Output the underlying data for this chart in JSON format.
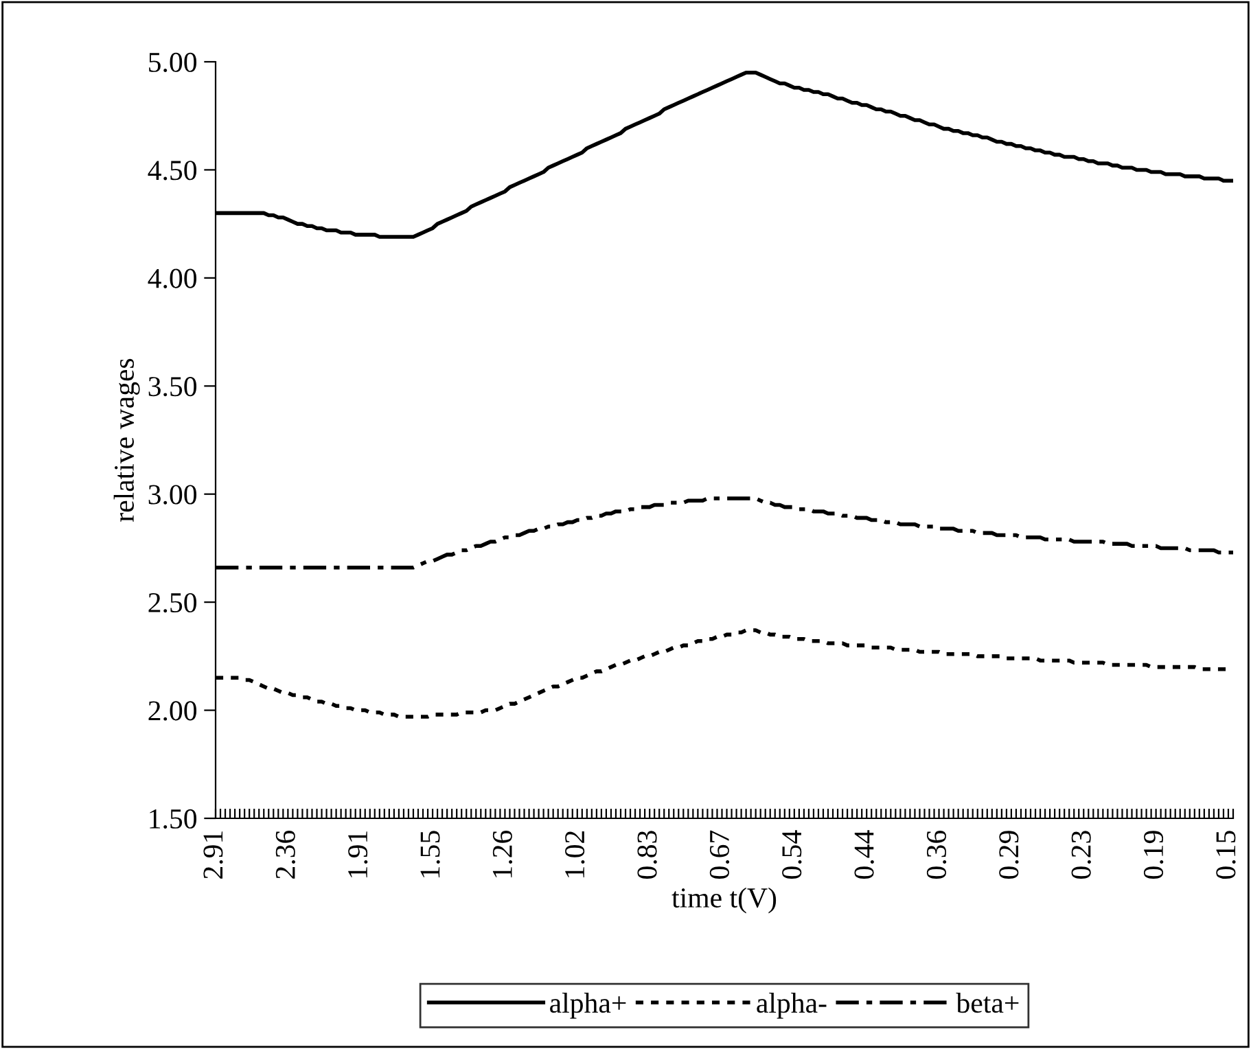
{
  "chart_data": {
    "type": "line",
    "xlabel": "time t(V)",
    "ylabel": "relative wages",
    "categories": [
      "2.91",
      null,
      null,
      null,
      null,
      null,
      null,
      null,
      null,
      null,
      null,
      null,
      null,
      null,
      null,
      "2.36",
      null,
      null,
      null,
      null,
      null,
      null,
      null,
      null,
      null,
      null,
      null,
      null,
      null,
      null,
      "1.91",
      null,
      null,
      null,
      null,
      null,
      null,
      null,
      null,
      null,
      null,
      null,
      null,
      null,
      null,
      "1.55",
      null,
      null,
      null,
      null,
      null,
      null,
      null,
      null,
      null,
      null,
      null,
      null,
      null,
      null,
      "1.26",
      null,
      null,
      null,
      null,
      null,
      null,
      null,
      null,
      null,
      null,
      null,
      null,
      null,
      null,
      "1.02",
      null,
      null,
      null,
      null,
      null,
      null,
      null,
      null,
      null,
      null,
      null,
      null,
      null,
      null,
      "0.83",
      null,
      null,
      null,
      null,
      null,
      null,
      null,
      null,
      null,
      null,
      null,
      null,
      null,
      null,
      "0.67",
      null,
      null,
      null,
      null,
      null,
      null,
      null,
      null,
      null,
      null,
      null,
      null,
      null,
      null,
      "0.54",
      null,
      null,
      null,
      null,
      null,
      null,
      null,
      null,
      null,
      null,
      null,
      null,
      null,
      null,
      "0.44",
      null,
      null,
      null,
      null,
      null,
      null,
      null,
      null,
      null,
      null,
      null,
      null,
      null,
      null,
      "0.36",
      null,
      null,
      null,
      null,
      null,
      null,
      null,
      null,
      null,
      null,
      null,
      null,
      null,
      null,
      "0.29",
      null,
      null,
      null,
      null,
      null,
      null,
      null,
      null,
      null,
      null,
      null,
      null,
      null,
      null,
      "0.23",
      null,
      null,
      null,
      null,
      null,
      null,
      null,
      null,
      null,
      null,
      null,
      null,
      null,
      null,
      "0.19",
      null,
      null,
      null,
      null,
      null,
      null,
      null,
      null,
      null,
      null,
      null,
      null,
      null,
      null,
      "0.15",
      null
    ],
    "series": [
      {
        "name": "alpha+",
        "color": "#000000",
        "line_style": "solid",
        "values": [
          4.3,
          4.3,
          4.3,
          4.3,
          4.3,
          4.3,
          4.3,
          4.3,
          4.3,
          4.3,
          4.3,
          4.29,
          4.29,
          4.28,
          4.28,
          4.27,
          4.26,
          4.25,
          4.25,
          4.24,
          4.24,
          4.23,
          4.23,
          4.22,
          4.22,
          4.22,
          4.21,
          4.21,
          4.21,
          4.2,
          4.2,
          4.2,
          4.2,
          4.2,
          4.19,
          4.19,
          4.19,
          4.19,
          4.19,
          4.19,
          4.19,
          4.19,
          4.2,
          4.21,
          4.22,
          4.23,
          4.25,
          4.26,
          4.27,
          4.28,
          4.29,
          4.3,
          4.31,
          4.33,
          4.34,
          4.35,
          4.36,
          4.37,
          4.38,
          4.39,
          4.4,
          4.42,
          4.43,
          4.44,
          4.45,
          4.46,
          4.47,
          4.48,
          4.49,
          4.51,
          4.52,
          4.53,
          4.54,
          4.55,
          4.56,
          4.57,
          4.58,
          4.6,
          4.61,
          4.62,
          4.63,
          4.64,
          4.65,
          4.66,
          4.67,
          4.69,
          4.7,
          4.71,
          4.72,
          4.73,
          4.74,
          4.75,
          4.76,
          4.78,
          4.79,
          4.8,
          4.81,
          4.82,
          4.83,
          4.84,
          4.85,
          4.86,
          4.87,
          4.88,
          4.89,
          4.9,
          4.91,
          4.92,
          4.93,
          4.94,
          4.95,
          4.95,
          4.95,
          4.94,
          4.93,
          4.92,
          4.91,
          4.9,
          4.9,
          4.89,
          4.88,
          4.88,
          4.87,
          4.87,
          4.86,
          4.86,
          4.85,
          4.85,
          4.84,
          4.83,
          4.83,
          4.82,
          4.81,
          4.81,
          4.8,
          4.8,
          4.79,
          4.78,
          4.78,
          4.77,
          4.77,
          4.76,
          4.75,
          4.75,
          4.74,
          4.73,
          4.73,
          4.72,
          4.71,
          4.71,
          4.7,
          4.69,
          4.69,
          4.68,
          4.68,
          4.67,
          4.67,
          4.66,
          4.66,
          4.65,
          4.65,
          4.64,
          4.63,
          4.63,
          4.62,
          4.62,
          4.61,
          4.61,
          4.6,
          4.6,
          4.59,
          4.59,
          4.58,
          4.58,
          4.57,
          4.57,
          4.56,
          4.56,
          4.56,
          4.55,
          4.55,
          4.54,
          4.54,
          4.53,
          4.53,
          4.53,
          4.52,
          4.52,
          4.51,
          4.51,
          4.51,
          4.5,
          4.5,
          4.5,
          4.49,
          4.49,
          4.49,
          4.48,
          4.48,
          4.48,
          4.48,
          4.47,
          4.47,
          4.47,
          4.47,
          4.46,
          4.46,
          4.46,
          4.46,
          4.45,
          4.45,
          4.45
        ]
      },
      {
        "name": "alpha-",
        "color": "#000000",
        "line_style": "dotted",
        "values": [
          2.15,
          2.15,
          2.15,
          2.15,
          2.15,
          2.15,
          2.14,
          2.14,
          2.13,
          2.12,
          2.11,
          2.1,
          2.1,
          2.09,
          2.08,
          2.08,
          2.07,
          2.07,
          2.06,
          2.06,
          2.05,
          2.04,
          2.04,
          2.03,
          2.03,
          2.02,
          2.02,
          2.01,
          2.01,
          2.0,
          2.0,
          2.0,
          1.99,
          1.99,
          1.99,
          1.98,
          1.98,
          1.98,
          1.97,
          1.97,
          1.97,
          1.97,
          1.97,
          1.97,
          1.97,
          1.98,
          1.98,
          1.98,
          1.98,
          1.98,
          1.98,
          1.99,
          1.99,
          1.99,
          1.99,
          1.99,
          2.0,
          2.0,
          2.0,
          2.01,
          2.02,
          2.03,
          2.03,
          2.04,
          2.05,
          2.06,
          2.07,
          2.08,
          2.09,
          2.1,
          2.11,
          2.11,
          2.12,
          2.13,
          2.14,
          2.15,
          2.15,
          2.16,
          2.17,
          2.18,
          2.18,
          2.19,
          2.2,
          2.21,
          2.21,
          2.22,
          2.23,
          2.23,
          2.24,
          2.25,
          2.25,
          2.26,
          2.27,
          2.27,
          2.28,
          2.29,
          2.29,
          2.3,
          2.3,
          2.31,
          2.32,
          2.32,
          2.33,
          2.33,
          2.34,
          2.34,
          2.35,
          2.35,
          2.36,
          2.36,
          2.37,
          2.37,
          2.37,
          2.36,
          2.36,
          2.35,
          2.35,
          2.34,
          2.34,
          2.34,
          2.33,
          2.33,
          2.33,
          2.32,
          2.32,
          2.32,
          2.32,
          2.31,
          2.31,
          2.31,
          2.31,
          2.3,
          2.3,
          2.3,
          2.3,
          2.3,
          2.29,
          2.29,
          2.29,
          2.29,
          2.29,
          2.28,
          2.28,
          2.28,
          2.28,
          2.28,
          2.27,
          2.27,
          2.27,
          2.27,
          2.27,
          2.26,
          2.26,
          2.26,
          2.26,
          2.26,
          2.26,
          2.26,
          2.25,
          2.25,
          2.25,
          2.25,
          2.25,
          2.25,
          2.24,
          2.24,
          2.24,
          2.24,
          2.24,
          2.24,
          2.24,
          2.23,
          2.23,
          2.23,
          2.23,
          2.23,
          2.23,
          2.23,
          2.22,
          2.22,
          2.22,
          2.22,
          2.22,
          2.22,
          2.22,
          2.21,
          2.21,
          2.21,
          2.21,
          2.21,
          2.21,
          2.21,
          2.21,
          2.21,
          2.2,
          2.2,
          2.2,
          2.2,
          2.2,
          2.2,
          2.2,
          2.2,
          2.2,
          2.2,
          2.19,
          2.19,
          2.19,
          2.19,
          2.19,
          2.19,
          2.19,
          2.19
        ]
      },
      {
        "name": "beta+",
        "color": "#000000",
        "line_style": "dashdot",
        "values": [
          2.66,
          2.66,
          2.66,
          2.66,
          2.66,
          2.66,
          2.66,
          2.66,
          2.66,
          2.66,
          2.66,
          2.66,
          2.66,
          2.66,
          2.66,
          2.66,
          2.66,
          2.66,
          2.66,
          2.66,
          2.66,
          2.66,
          2.66,
          2.66,
          2.66,
          2.66,
          2.66,
          2.66,
          2.66,
          2.66,
          2.66,
          2.66,
          2.66,
          2.66,
          2.66,
          2.66,
          2.66,
          2.66,
          2.66,
          2.66,
          2.66,
          2.66,
          2.67,
          2.68,
          2.69,
          2.69,
          2.7,
          2.71,
          2.72,
          2.72,
          2.73,
          2.74,
          2.74,
          2.75,
          2.76,
          2.76,
          2.77,
          2.78,
          2.78,
          2.79,
          2.8,
          2.8,
          2.81,
          2.81,
          2.82,
          2.83,
          2.83,
          2.84,
          2.84,
          2.85,
          2.85,
          2.86,
          2.86,
          2.87,
          2.87,
          2.88,
          2.88,
          2.89,
          2.89,
          2.9,
          2.9,
          2.91,
          2.91,
          2.92,
          2.92,
          2.92,
          2.93,
          2.93,
          2.94,
          2.94,
          2.94,
          2.95,
          2.95,
          2.95,
          2.96,
          2.96,
          2.96,
          2.96,
          2.97,
          2.97,
          2.97,
          2.97,
          2.98,
          2.98,
          2.98,
          2.98,
          2.98,
          2.98,
          2.98,
          2.98,
          2.98,
          2.98,
          2.98,
          2.97,
          2.96,
          2.96,
          2.95,
          2.95,
          2.94,
          2.94,
          2.94,
          2.93,
          2.93,
          2.93,
          2.92,
          2.92,
          2.92,
          2.91,
          2.91,
          2.91,
          2.9,
          2.9,
          2.9,
          2.89,
          2.89,
          2.89,
          2.88,
          2.88,
          2.88,
          2.87,
          2.87,
          2.87,
          2.86,
          2.86,
          2.86,
          2.86,
          2.85,
          2.85,
          2.85,
          2.85,
          2.84,
          2.84,
          2.84,
          2.84,
          2.83,
          2.83,
          2.83,
          2.83,
          2.82,
          2.82,
          2.82,
          2.82,
          2.81,
          2.81,
          2.81,
          2.81,
          2.81,
          2.8,
          2.8,
          2.8,
          2.8,
          2.8,
          2.79,
          2.79,
          2.79,
          2.79,
          2.79,
          2.79,
          2.78,
          2.78,
          2.78,
          2.78,
          2.78,
          2.78,
          2.78,
          2.77,
          2.77,
          2.77,
          2.77,
          2.77,
          2.76,
          2.76,
          2.76,
          2.76,
          2.76,
          2.76,
          2.75,
          2.75,
          2.75,
          2.75,
          2.75,
          2.75,
          2.74,
          2.74,
          2.74,
          2.74,
          2.74,
          2.74,
          2.73,
          2.73,
          2.73,
          2.73
        ]
      }
    ],
    "ylim": [
      1.5,
      5.0
    ],
    "yticks": [
      {
        "value": 1.5,
        "label": "1.50"
      },
      {
        "value": 2.0,
        "label": "2.00"
      },
      {
        "value": 2.5,
        "label": "2.50"
      },
      {
        "value": 3.0,
        "label": "3.00"
      },
      {
        "value": 3.5,
        "label": "3.50"
      },
      {
        "value": 4.0,
        "label": "4.00"
      },
      {
        "value": 4.5,
        "label": "4.50"
      },
      {
        "value": 5.0,
        "label": "5.00"
      }
    ],
    "grid": false,
    "legend": "bottom",
    "marker": "none"
  }
}
